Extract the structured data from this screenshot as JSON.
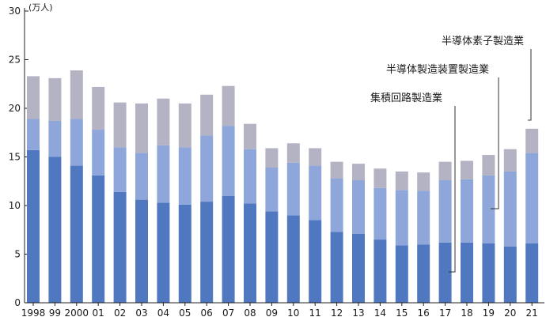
{
  "chart_data": {
    "type": "bar",
    "stacked": true,
    "unit_label": "(万人)",
    "ylim": [
      0,
      30
    ],
    "yticks": [
      "0",
      "5",
      "10",
      "15",
      "20",
      "25",
      "30"
    ],
    "categories": [
      "1998",
      "99",
      "2000",
      "01",
      "02",
      "03",
      "04",
      "05",
      "06",
      "07",
      "08",
      "09",
      "10",
      "11",
      "12",
      "13",
      "14",
      "15",
      "16",
      "17",
      "18",
      "19",
      "20",
      "21"
    ],
    "series": [
      {
        "name": "集積回路製造業",
        "color": "#5078c0",
        "values": [
          15.7,
          15.0,
          14.1,
          13.1,
          11.4,
          10.6,
          10.3,
          10.1,
          10.4,
          11.0,
          10.2,
          9.4,
          9.0,
          8.5,
          7.3,
          7.1,
          6.5,
          5.9,
          6.0,
          6.2,
          6.2,
          6.1,
          5.8,
          6.1
        ]
      },
      {
        "name": "半導体製造装置製造業",
        "color": "#8fa6da",
        "values": [
          3.2,
          3.7,
          4.8,
          4.7,
          4.6,
          4.8,
          5.9,
          5.9,
          6.8,
          7.2,
          5.6,
          4.5,
          5.4,
          5.6,
          5.5,
          5.5,
          5.3,
          5.7,
          5.5,
          6.4,
          6.5,
          7.0,
          7.7,
          9.3
        ]
      },
      {
        "name": "半導体素子製造業",
        "color": "#b3b3c4",
        "values": [
          4.4,
          4.4,
          5.0,
          4.4,
          4.6,
          5.1,
          4.8,
          4.5,
          4.2,
          4.1,
          2.6,
          2.0,
          2.0,
          1.8,
          1.7,
          1.7,
          2.0,
          1.9,
          1.9,
          1.9,
          1.9,
          2.1,
          2.3,
          2.5
        ]
      }
    ],
    "annotations": [
      {
        "text": "半導体素子製造業",
        "series": 2
      },
      {
        "text": "半導体製造装置製造業",
        "series": 1
      },
      {
        "text": "集積回路製造業",
        "series": 0
      }
    ]
  }
}
